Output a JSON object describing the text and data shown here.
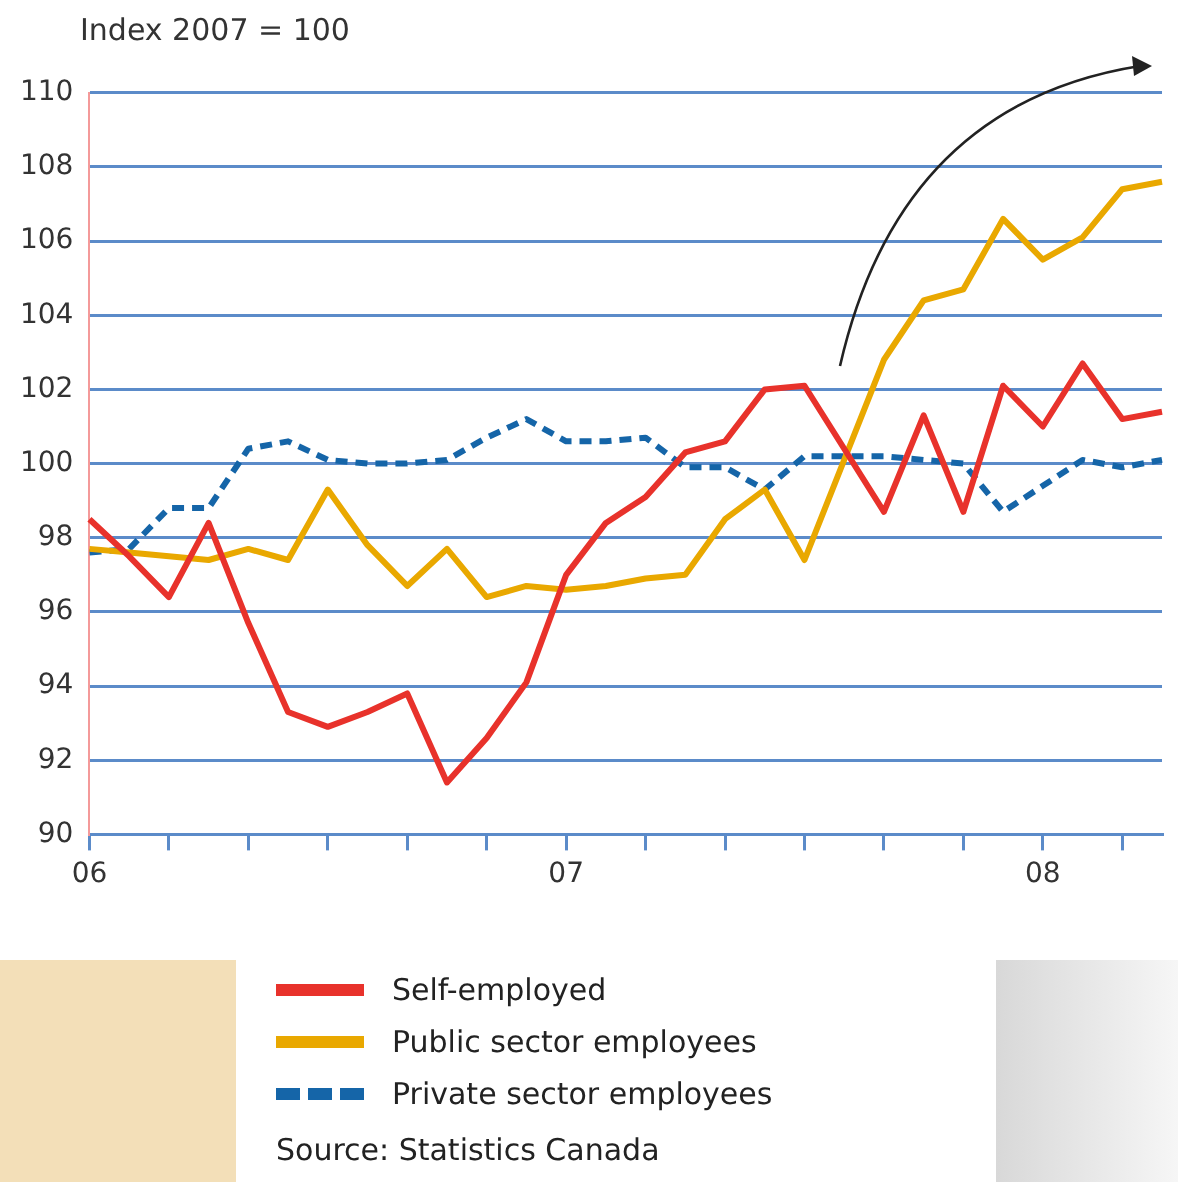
{
  "chart_data": {
    "type": "line",
    "ylabel": "Index 2007 = 100",
    "categories": [
      "06",
      null,
      null,
      null,
      null,
      null,
      null,
      null,
      null,
      null,
      null,
      null,
      "07",
      null,
      null,
      null,
      null,
      null,
      null,
      null,
      null,
      null,
      null,
      null,
      "08",
      null,
      null,
      null
    ],
    "series": [
      {
        "name": "Self-employed",
        "color": "#e8322b",
        "values": [
          98.5,
          97.5,
          96.4,
          98.4,
          95.7,
          93.3,
          92.9,
          93.3,
          93.8,
          91.4,
          92.6,
          94.1,
          97.0,
          98.4,
          99.1,
          100.3,
          100.6,
          102.0,
          102.1,
          100.4,
          98.7,
          101.3,
          98.7,
          102.1,
          101.0,
          102.7,
          101.2,
          101.4
        ]
      },
      {
        "name": "Public sector employees",
        "color": "#e9a800",
        "values": [
          97.7,
          97.6,
          97.5,
          97.4,
          97.7,
          97.4,
          99.3,
          97.8,
          96.7,
          97.7,
          96.4,
          96.7,
          96.6,
          96.7,
          96.9,
          97.0,
          98.5,
          99.3,
          97.4,
          100.1,
          102.8,
          104.4,
          104.7,
          106.6,
          105.5,
          106.1,
          107.4,
          107.6
        ]
      },
      {
        "name": "Private sector employees",
        "color": "#1565a8",
        "line_style": "dashed",
        "values": [
          97.6,
          97.7,
          98.8,
          98.8,
          100.4,
          100.6,
          100.1,
          100.0,
          100.0,
          100.1,
          100.7,
          101.2,
          100.6,
          100.6,
          100.7,
          99.9,
          99.9,
          99.3,
          100.2,
          100.2,
          100.2,
          100.1,
          100.0,
          98.7,
          99.4,
          100.1,
          99.9,
          100.1
        ]
      }
    ],
    "ylim": [
      90,
      110
    ],
    "yticks": [
      90,
      92,
      94,
      96,
      98,
      100,
      102,
      104,
      106,
      108,
      110
    ],
    "grid": "y",
    "legend": "bottom",
    "marker": "none",
    "annotations": [
      "Source: Statistics Canada"
    ]
  }
}
